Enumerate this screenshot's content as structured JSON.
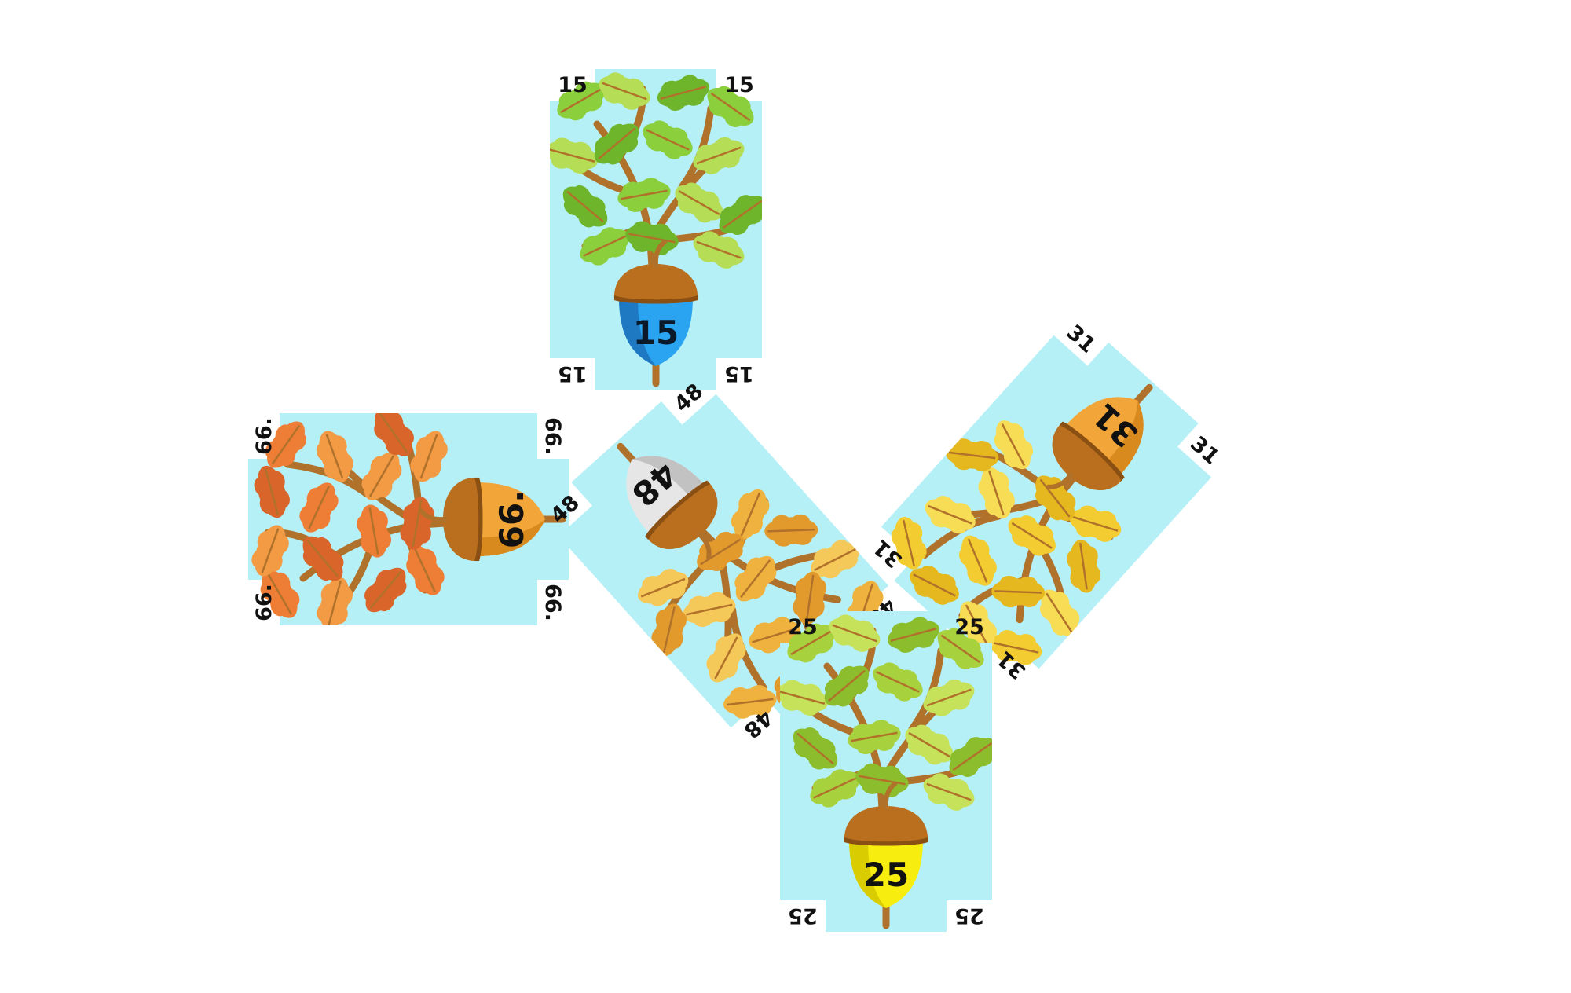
{
  "colors": {
    "background": "#ffffff",
    "card_sky": "#b6f0f7",
    "branch": "#b0722b",
    "acorn_cap": "#b96f1e",
    "acorn_cap_dark": "#8a4f12"
  },
  "cards": [
    {
      "id": "card-15",
      "corner_label": "15",
      "nut_label": "15",
      "nut_color": "#2aa3f0",
      "nut_shade": "#1f78c2",
      "nut_text_color": "#0a1a2a",
      "leaf_colors": [
        "#8ccf3c",
        "#b5dd55",
        "#6fb52b"
      ],
      "rotation_deg": 0
    },
    {
      "id": "card-66",
      "corner_label": "66.",
      "nut_label": "66.",
      "nut_color": "#f2a63a",
      "nut_shade": "#d98a1f",
      "nut_text_color": "#111111",
      "leaf_colors": [
        "#ee7d35",
        "#f39a45",
        "#d9652a"
      ],
      "rotation_deg": -90
    },
    {
      "id": "card-48",
      "corner_label": "48",
      "nut_label": "48",
      "nut_color": "#e6e6e6",
      "nut_shade": "#c2c2c2",
      "nut_text_color": "#111111",
      "leaf_colors": [
        "#efb23e",
        "#f5c85a",
        "#e29a2c"
      ],
      "rotation_deg": 138
    },
    {
      "id": "card-31",
      "corner_label": "31",
      "nut_label": "31",
      "nut_color": "#f2a63a",
      "nut_shade": "#d98a1f",
      "nut_text_color": "#111111",
      "leaf_colors": [
        "#f2cc30",
        "#f7dc55",
        "#e6b81f"
      ],
      "rotation_deg": 222
    },
    {
      "id": "card-25",
      "corner_label": "25",
      "nut_label": "25",
      "nut_color": "#f7ee10",
      "nut_shade": "#d9cc00",
      "nut_text_color": "#111111",
      "leaf_colors": [
        "#a7d23e",
        "#c6e25b",
        "#8bbd2d"
      ],
      "rotation_deg": 0
    }
  ]
}
